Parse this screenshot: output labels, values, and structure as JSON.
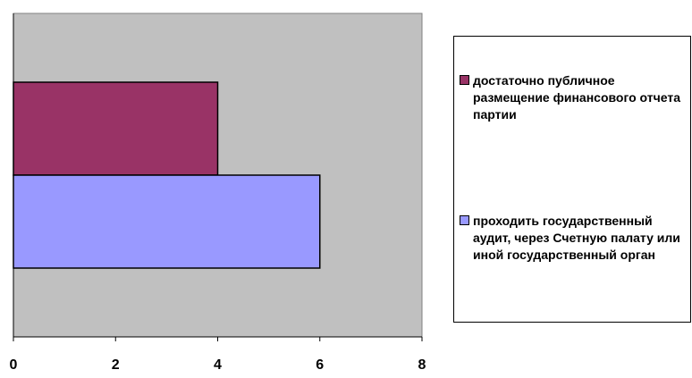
{
  "chart_data": {
    "type": "bar",
    "orientation": "horizontal",
    "series": [
      {
        "name": "достаточно публичное размещение финансового отчета партии",
        "values": [
          4
        ],
        "color": "#993366"
      },
      {
        "name": "проходить государственный аудит, через Счетную палату или иной государственный орган",
        "values": [
          6
        ],
        "color": "#9999FF"
      }
    ],
    "xlim": [
      0,
      8
    ],
    "x_ticks": [
      "0",
      "2",
      "4",
      "6",
      "8"
    ],
    "plot_background": "#C0C0C0",
    "grid": false,
    "legend_position": "right"
  },
  "legend": {
    "items": [
      {
        "label": "достаточно публичное размещение финансового отчета партии",
        "color": "#993366"
      },
      {
        "label": "проходить государственный аудит, через Счетную палату или иной государственный орган",
        "color": "#9999FF"
      }
    ]
  }
}
